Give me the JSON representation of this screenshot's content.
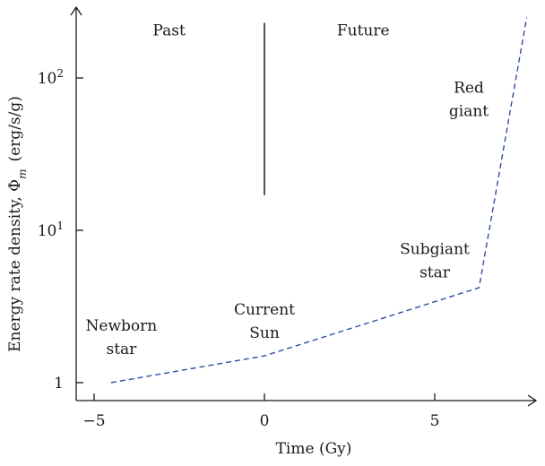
{
  "chart_data": {
    "type": "line",
    "title": "",
    "xlabel": "Time (Gy)",
    "ylabel": "Energy rate density, Φ_m (erg/s/g)",
    "ylabel_parts": {
      "prefix": "Energy rate density, Φ",
      "subscript": "m",
      "suffix": "(erg/s/g)"
    },
    "xlim": [
      -6,
      8
    ],
    "ylim": [
      0.8,
      270
    ],
    "yscale": "log",
    "grid": false,
    "x_ticks": [
      {
        "value": -5,
        "label": "−5"
      },
      {
        "value": 0,
        "label": "0"
      },
      {
        "value": 5,
        "label": "5"
      }
    ],
    "y_ticks": [
      {
        "value": 1,
        "base": "1",
        "exp": ""
      },
      {
        "value": 10,
        "base": "10",
        "exp": "1"
      },
      {
        "value": 100,
        "base": "10",
        "exp": "2"
      }
    ],
    "series": [
      {
        "color": "#2b4fa3",
        "style": "dashed",
        "x": [
          -4.5,
          0,
          6.3,
          7.7
        ],
        "y": [
          1.0,
          1.5,
          4.2,
          250
        ]
      }
    ],
    "divider": {
      "x": 0,
      "y_from": 17,
      "y_to": 230
    },
    "annotations": [
      {
        "lines": [
          "Past"
        ],
        "x": -2.8,
        "y": 190
      },
      {
        "lines": [
          "Future"
        ],
        "x": 2.9,
        "y": 190
      },
      {
        "lines": [
          "Red",
          "giant"
        ],
        "x": 6.0,
        "y": 80
      },
      {
        "lines": [
          "Subgiant",
          "star"
        ],
        "x": 5.0,
        "y": 7.0
      },
      {
        "lines": [
          "Current",
          "Sun"
        ],
        "x": 0,
        "y": 2.8
      },
      {
        "lines": [
          "Newborn",
          "star"
        ],
        "x": -4.2,
        "y": 2.2
      }
    ]
  }
}
